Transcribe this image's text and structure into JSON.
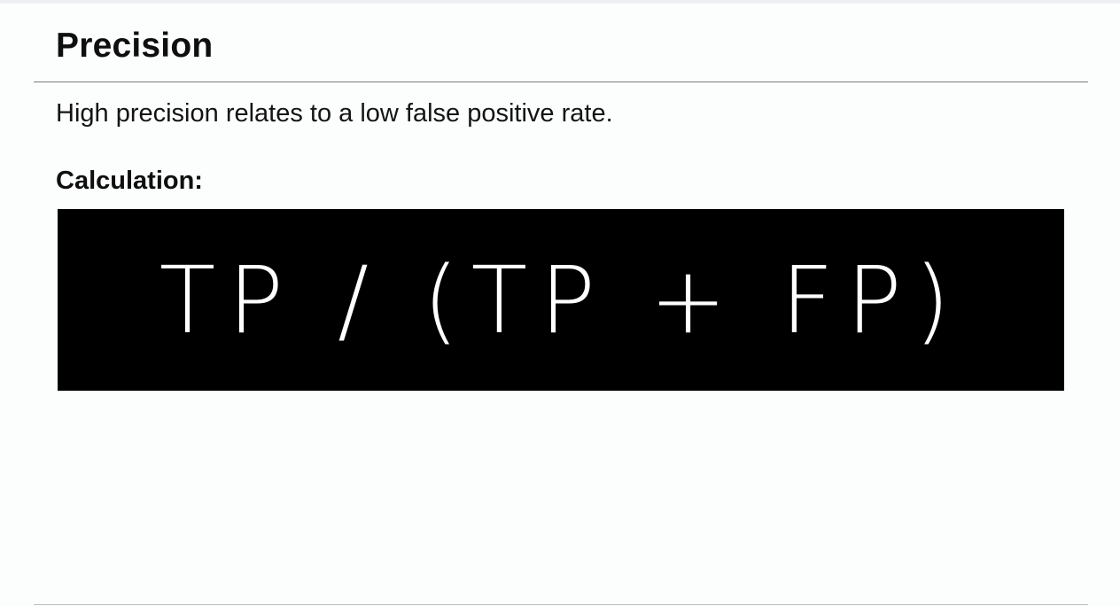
{
  "slide": {
    "title": "Precision",
    "description": "High precision relates to a low false positive rate.",
    "calculation_label": "Calculation:",
    "formula": "TP / (TP + FP)"
  },
  "colors": {
    "background": "#fcfdfd",
    "formula_background": "#000000",
    "formula_text": "#ffffff",
    "text": "#111111"
  }
}
